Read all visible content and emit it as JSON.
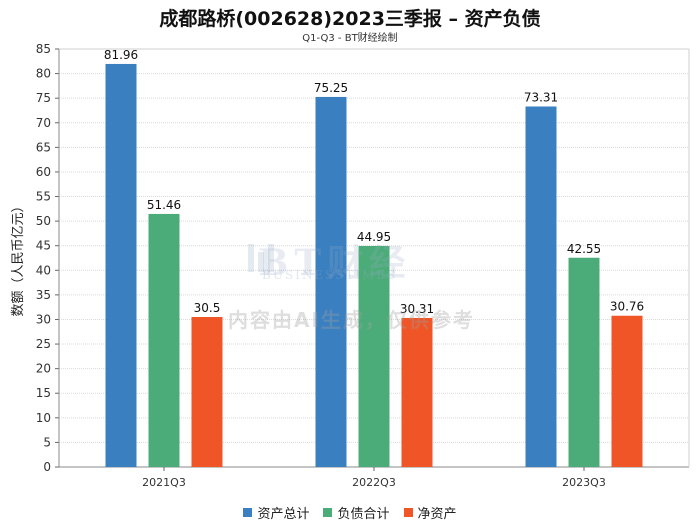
{
  "header": {
    "title": "成都路桥(002628)2023三季报 – 资产负债",
    "subtitle": "Q1-Q3 - BT财经绘制"
  },
  "watermark": {
    "brand": "BT财经",
    "brand_sub": "BUSINESSTIMES",
    "notice": "内容由AI生成，仅供参考"
  },
  "chart_data": {
    "type": "bar",
    "categories": [
      "2021Q3",
      "2022Q3",
      "2023Q3"
    ],
    "series": [
      {
        "name": "资产总计",
        "values": [
          81.96,
          75.25,
          73.31
        ],
        "labels": [
          "81.96",
          "75.25",
          "73.31"
        ],
        "color": "#3a80c0"
      },
      {
        "name": "负债合计",
        "values": [
          51.46,
          44.95,
          42.55
        ],
        "labels": [
          "51.46",
          "44.95",
          "42.55"
        ],
        "color": "#4cac79"
      },
      {
        "name": "净资产",
        "values": [
          30.5,
          30.31,
          30.76
        ],
        "labels": [
          "30.5",
          "30.31",
          "30.76"
        ],
        "color": "#ef5527"
      }
    ],
    "ylabel": "数额（人民币亿元）",
    "ylim": [
      0,
      85
    ],
    "yticks": [
      0,
      5,
      10,
      15,
      20,
      25,
      30,
      35,
      40,
      45,
      50,
      55,
      60,
      65,
      70,
      75,
      80,
      85
    ],
    "grid": true,
    "legend": "bottom-center"
  }
}
